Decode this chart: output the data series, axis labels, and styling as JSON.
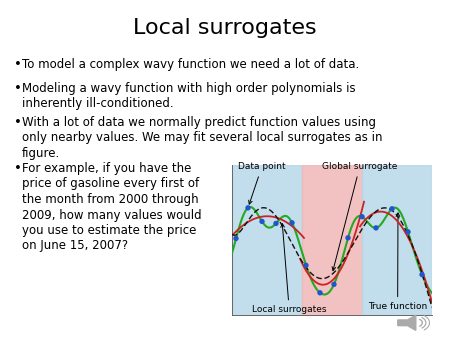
{
  "title": "Local surrogates",
  "bullet1": "To model a complex wavy function we need a lot of data.",
  "bullet2": "Modeling a wavy function with high order polynomials is\ninherently ill-conditioned.",
  "bullet3": "With a lot of data we normally predict function values using\nonly nearby values. We may fit several local surrogates as in\nfigure.",
  "bullet4": "For example, if you have the\nprice of gasoline every first of\nthe month from 2000 through\n2009, how many values would\nyou use to estimate the price\non June 15, 2007?",
  "background_color": "#ffffff",
  "text_color": "#000000",
  "title_fontsize": 16,
  "bullet_fontsize": 8.5,
  "true_func_color": "#22aa22",
  "local_surrogate_color": "#cc2222",
  "local_surrogate_color2": "#aa33aa",
  "data_point_color": "#2255cc",
  "dashed_color": "#222222",
  "annotation_fontsize": 6.5,
  "inset_bg_left": "#c8e0ec",
  "inset_bg_mid": "#f0c0c0",
  "inset_bg_right": "#c8e0ec"
}
